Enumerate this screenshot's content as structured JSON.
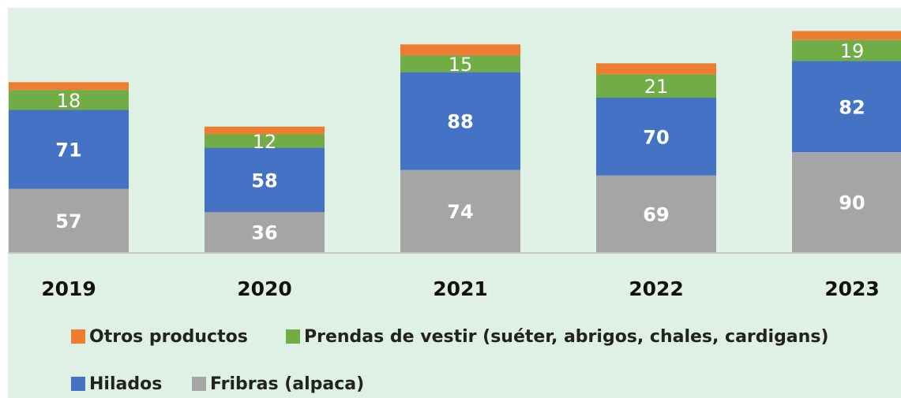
{
  "chart_data": {
    "type": "stacked_bar",
    "categories": [
      "2019",
      "2020",
      "2021",
      "2022",
      "2023"
    ],
    "series": [
      {
        "name": "Otros productos",
        "color": "#ed7d31",
        "values": [
          7,
          7,
          10,
          10,
          8
        ],
        "show_labels": false
      },
      {
        "name": "Prendas de vestir (suéter, abrigos, chales, cardigans)",
        "color": "#70ad47",
        "values": [
          18,
          12,
          15,
          21,
          19
        ],
        "show_labels": true
      },
      {
        "name": "Hilados",
        "color": "#4472c4",
        "values": [
          71,
          58,
          88,
          70,
          82
        ],
        "show_labels": true
      },
      {
        "name": "Fribras (alpaca)",
        "color": "#a5a5a5",
        "values": [
          57,
          36,
          74,
          69,
          90
        ],
        "show_labels": true
      }
    ]
  }
}
